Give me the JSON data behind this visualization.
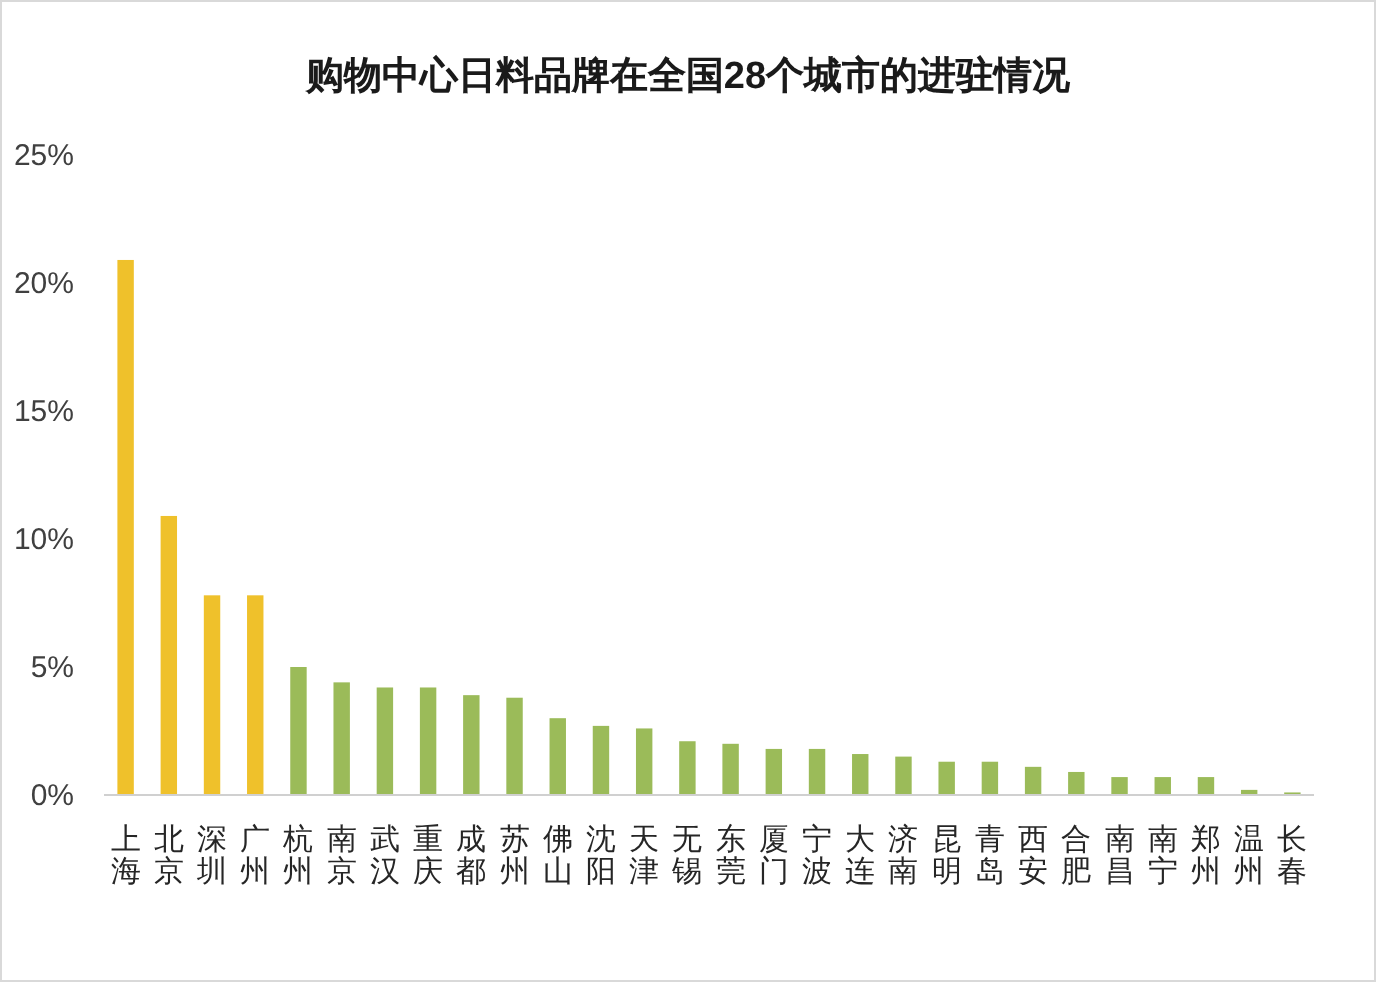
{
  "chart_data": {
    "type": "bar",
    "title": "购物中心日料品牌在全国28个城市的进驻情况",
    "categories": [
      "上海",
      "北京",
      "深圳",
      "广州",
      "杭州",
      "南京",
      "武汉",
      "重庆",
      "成都",
      "苏州",
      "佛山",
      "沈阳",
      "天津",
      "无锡",
      "东莞",
      "厦门",
      "宁波",
      "大连",
      "济南",
      "昆明",
      "青岛",
      "西安",
      "合肥",
      "南昌",
      "南宁",
      "郑州",
      "温州",
      "长春"
    ],
    "values": [
      20.9,
      10.9,
      7.8,
      7.8,
      5.0,
      4.4,
      4.2,
      4.2,
      3.9,
      3.8,
      3.0,
      2.7,
      2.6,
      2.1,
      2.0,
      1.8,
      1.8,
      1.6,
      1.5,
      1.3,
      1.3,
      1.1,
      0.9,
      0.7,
      0.7,
      0.7,
      0.2,
      0.1
    ],
    "colors": [
      "#efc12b",
      "#efc12b",
      "#efc12b",
      "#efc12b",
      "#9bbb59",
      "#9bbb59",
      "#9bbb59",
      "#9bbb59",
      "#9bbb59",
      "#9bbb59",
      "#9bbb59",
      "#9bbb59",
      "#9bbb59",
      "#9bbb59",
      "#9bbb59",
      "#9bbb59",
      "#9bbb59",
      "#9bbb59",
      "#9bbb59",
      "#9bbb59",
      "#9bbb59",
      "#9bbb59",
      "#9bbb59",
      "#9bbb59",
      "#9bbb59",
      "#9bbb59",
      "#9bbb59",
      "#9bbb59"
    ],
    "ylim": [
      0,
      25
    ],
    "yticks": [
      {
        "value": 0,
        "label": "0%"
      },
      {
        "value": 5,
        "label": "5%"
      },
      {
        "value": 10,
        "label": "10%"
      },
      {
        "value": 15,
        "label": "15%"
      },
      {
        "value": 20,
        "label": "20%"
      },
      {
        "value": 25,
        "label": "25%"
      }
    ]
  }
}
